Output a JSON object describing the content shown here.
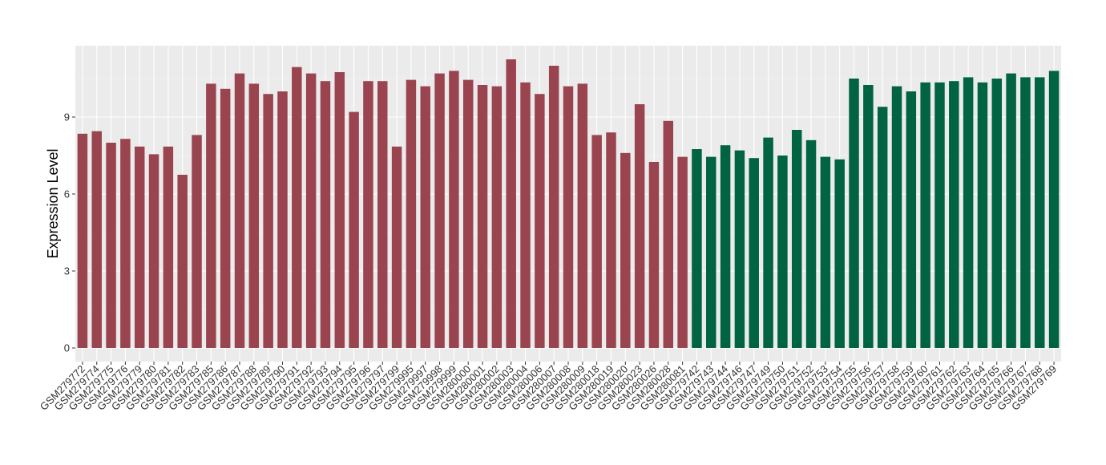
{
  "chart_data": {
    "type": "bar",
    "title": "",
    "xlabel": "",
    "ylabel": "Expression Level",
    "ylim": [
      0,
      11.6
    ],
    "yticks": [
      0,
      3,
      6,
      9
    ],
    "ytick_labels": [
      "0",
      "3",
      "6",
      "9"
    ],
    "grid": true,
    "legend": "none",
    "series_colors": {
      "group1": "#9a4450",
      "group2": "#006341"
    },
    "panel_background": "#ebebeb",
    "categories": [
      "GSM279772",
      "GSM279774",
      "GSM279775",
      "GSM279776",
      "GSM279779",
      "GSM279780",
      "GSM279781",
      "GSM279782",
      "GSM279783",
      "GSM279785",
      "GSM279786",
      "GSM279787",
      "GSM279788",
      "GSM279789",
      "GSM279790",
      "GSM279791",
      "GSM279792",
      "GSM279793",
      "GSM279794",
      "GSM279795",
      "GSM279796",
      "GSM279797",
      "GSM279799",
      "GSM279995",
      "GSM279997",
      "GSM279998",
      "GSM279999",
      "GSM280000",
      "GSM280001",
      "GSM280002",
      "GSM280003",
      "GSM280004",
      "GSM280006",
      "GSM280007",
      "GSM280008",
      "GSM280009",
      "GSM280018",
      "GSM280019",
      "GSM280020",
      "GSM280023",
      "GSM280026",
      "GSM280028",
      "GSM280081",
      "GSM279742",
      "GSM279743",
      "GSM279744",
      "GSM279746",
      "GSM279747",
      "GSM279749",
      "GSM279750",
      "GSM279751",
      "GSM279752",
      "GSM279753",
      "GSM279754",
      "GSM279755",
      "GSM279756",
      "GSM279757",
      "GSM279758",
      "GSM279759",
      "GSM279760",
      "GSM279761",
      "GSM279762",
      "GSM279763",
      "GSM279764",
      "GSM279765",
      "GSM279766",
      "GSM279767",
      "GSM279768",
      "GSM279769"
    ],
    "values": [
      8.35,
      8.45,
      8.0,
      8.15,
      7.85,
      7.55,
      7.85,
      6.75,
      8.3,
      10.3,
      10.1,
      10.7,
      10.3,
      9.9,
      10.0,
      10.95,
      10.7,
      10.4,
      10.75,
      9.2,
      10.4,
      10.4,
      7.85,
      10.45,
      10.2,
      10.7,
      10.8,
      10.45,
      10.25,
      10.2,
      11.25,
      10.35,
      9.9,
      11.0,
      10.2,
      10.3,
      8.3,
      8.4,
      7.6,
      9.5,
      7.25,
      8.85,
      7.45,
      7.75,
      7.45,
      7.9,
      7.7,
      7.4,
      8.2,
      7.5,
      8.5,
      8.1,
      7.45,
      7.35,
      10.5,
      10.25,
      9.4,
      10.2,
      10.0,
      10.35,
      10.35,
      10.4,
      10.55,
      10.35,
      10.5,
      10.7,
      10.55,
      10.55,
      10.8
    ],
    "groups": [
      "group1",
      "group1",
      "group1",
      "group1",
      "group1",
      "group1",
      "group1",
      "group1",
      "group1",
      "group1",
      "group1",
      "group1",
      "group1",
      "group1",
      "group1",
      "group1",
      "group1",
      "group1",
      "group1",
      "group1",
      "group1",
      "group1",
      "group1",
      "group1",
      "group1",
      "group1",
      "group1",
      "group1",
      "group1",
      "group1",
      "group1",
      "group1",
      "group1",
      "group1",
      "group1",
      "group1",
      "group1",
      "group1",
      "group1",
      "group1",
      "group1",
      "group1",
      "group1",
      "group2",
      "group2",
      "group2",
      "group2",
      "group2",
      "group2",
      "group2",
      "group2",
      "group2",
      "group2",
      "group2",
      "group2",
      "group2",
      "group2",
      "group2",
      "group2",
      "group2",
      "group2",
      "group2",
      "group2",
      "group2",
      "group2",
      "group2",
      "group2",
      "group2",
      "group2"
    ]
  }
}
